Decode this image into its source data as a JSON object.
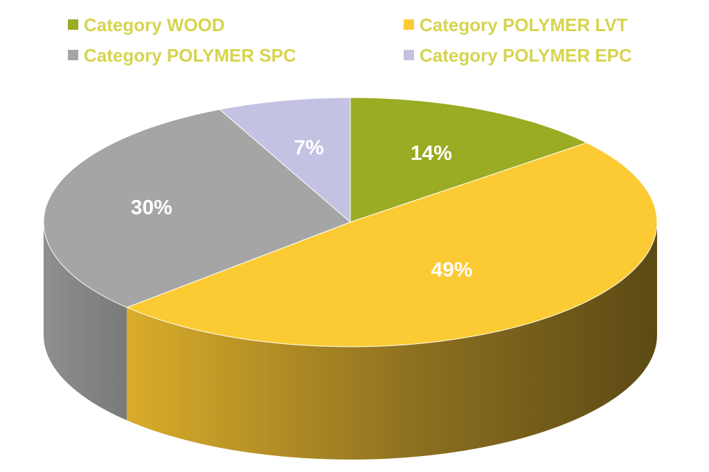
{
  "chart_data": {
    "type": "pie",
    "style": "3d",
    "legend_position": "top",
    "slices": [
      {
        "name": "Category WOOD",
        "value": 14,
        "label": "14%",
        "color": "#9aab24"
      },
      {
        "name": "Category POLYMER LVT",
        "value": 49,
        "label": "49%",
        "color": "#fccb33"
      },
      {
        "name": "Category POLYMER SPC",
        "value": 30,
        "label": "30%",
        "color": "#a5a5a5"
      },
      {
        "name": "Category POLYMER EPC",
        "value": 7,
        "label": "7%",
        "color": "#c4c2e2"
      }
    ],
    "legend_text_color": "#d6d44e"
  }
}
